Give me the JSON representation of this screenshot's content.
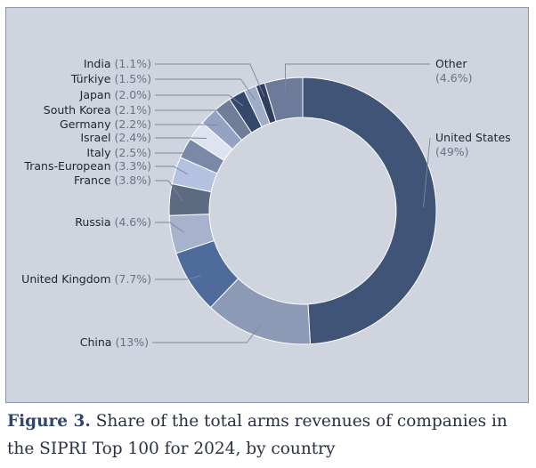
{
  "chart_data": {
    "type": "pie",
    "donut": true,
    "start_angle_deg": 0,
    "slices": [
      {
        "label": "United States",
        "value": 49,
        "value_label": "(49%)",
        "color": "#3f5476"
      },
      {
        "label": "China",
        "value": 13,
        "value_label": "(13%)",
        "color": "#8c9ab6"
      },
      {
        "label": "United Kingdom",
        "value": 7.7,
        "value_label": "(7.7%)",
        "color": "#4e6b9c"
      },
      {
        "label": "Russia",
        "value": 4.6,
        "value_label": "(4.6%)",
        "color": "#a7b3cc"
      },
      {
        "label": "France",
        "value": 3.8,
        "value_label": "(3.8%)",
        "color": "#5c6a82"
      },
      {
        "label": "Trans-European",
        "value": 3.3,
        "value_label": "(3.3%)",
        "color": "#b4c2e2"
      },
      {
        "label": "Italy",
        "value": 2.5,
        "value_label": "(2.5%)",
        "color": "#7b89a8"
      },
      {
        "label": "Israel",
        "value": 2.4,
        "value_label": "(2.4%)",
        "color": "#dde3ef"
      },
      {
        "label": "Germany",
        "value": 2.2,
        "value_label": "(2.2%)",
        "color": "#94a3c3"
      },
      {
        "label": "South Korea",
        "value": 2.1,
        "value_label": "(2.1%)",
        "color": "#6f7d99"
      },
      {
        "label": "Japan",
        "value": 2.0,
        "value_label": "(2.0%)",
        "color": "#34486c"
      },
      {
        "label": "Türkiye",
        "value": 1.5,
        "value_label": "(1.5%)",
        "color": "#9fadc8"
      },
      {
        "label": "India",
        "value": 1.1,
        "value_label": "(1.1%)",
        "color": "#2f3e5e"
      },
      {
        "label": "Other",
        "value": 4.6,
        "value_label": "(4.6%)",
        "color": "#6c7b99"
      }
    ]
  },
  "caption": {
    "figure_label": "Figure 3.",
    "text": "Share of the total arms revenues of companies in the SIPRI Top 100 for 2024, by country"
  }
}
